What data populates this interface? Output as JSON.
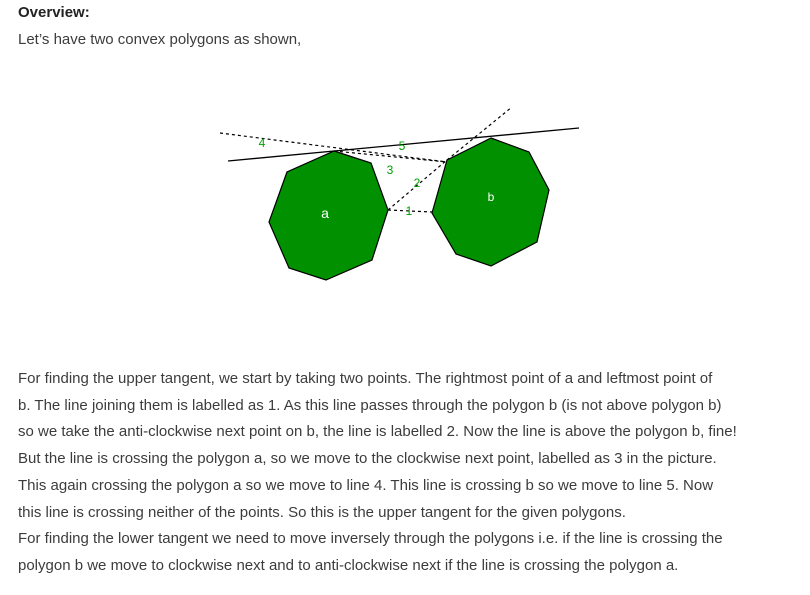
{
  "heading": "Overview:",
  "intro": "Let’s have two convex polygons as shown,",
  "figure": {
    "polygon_a_label": "a",
    "polygon_b_label": "b",
    "line_labels": [
      "1",
      "2",
      "3",
      "4",
      "5"
    ],
    "fill_color": "#009000",
    "label_color": "#00a000"
  },
  "paragraph_lines": [
    "For finding the upper tangent, we start by taking two points. The rightmost point of a and leftmost point of",
    "b. The line joining them is labelled as 1. As this line passes through the polygon b (is not above polygon b)",
    "so we take the anti-clockwise next point on b, the line is labelled 2. Now the line is above the polygon b, fine!",
    "But the line is crossing the polygon a, so we move to the clockwise next point, labelled as 3 in the picture.",
    "This again crossing the polygon a so we move to line 4. This line is crossing b so we move to line 5. Now",
    "this line is crossing neither of the points. So this is the upper tangent for the given polygons.",
    "For finding the lower tangent we need to move inversely through the polygons i.e. if the line is crossing the",
    "polygon b we move to clockwise next and to anti-clockwise next if the line is crossing the polygon a."
  ]
}
